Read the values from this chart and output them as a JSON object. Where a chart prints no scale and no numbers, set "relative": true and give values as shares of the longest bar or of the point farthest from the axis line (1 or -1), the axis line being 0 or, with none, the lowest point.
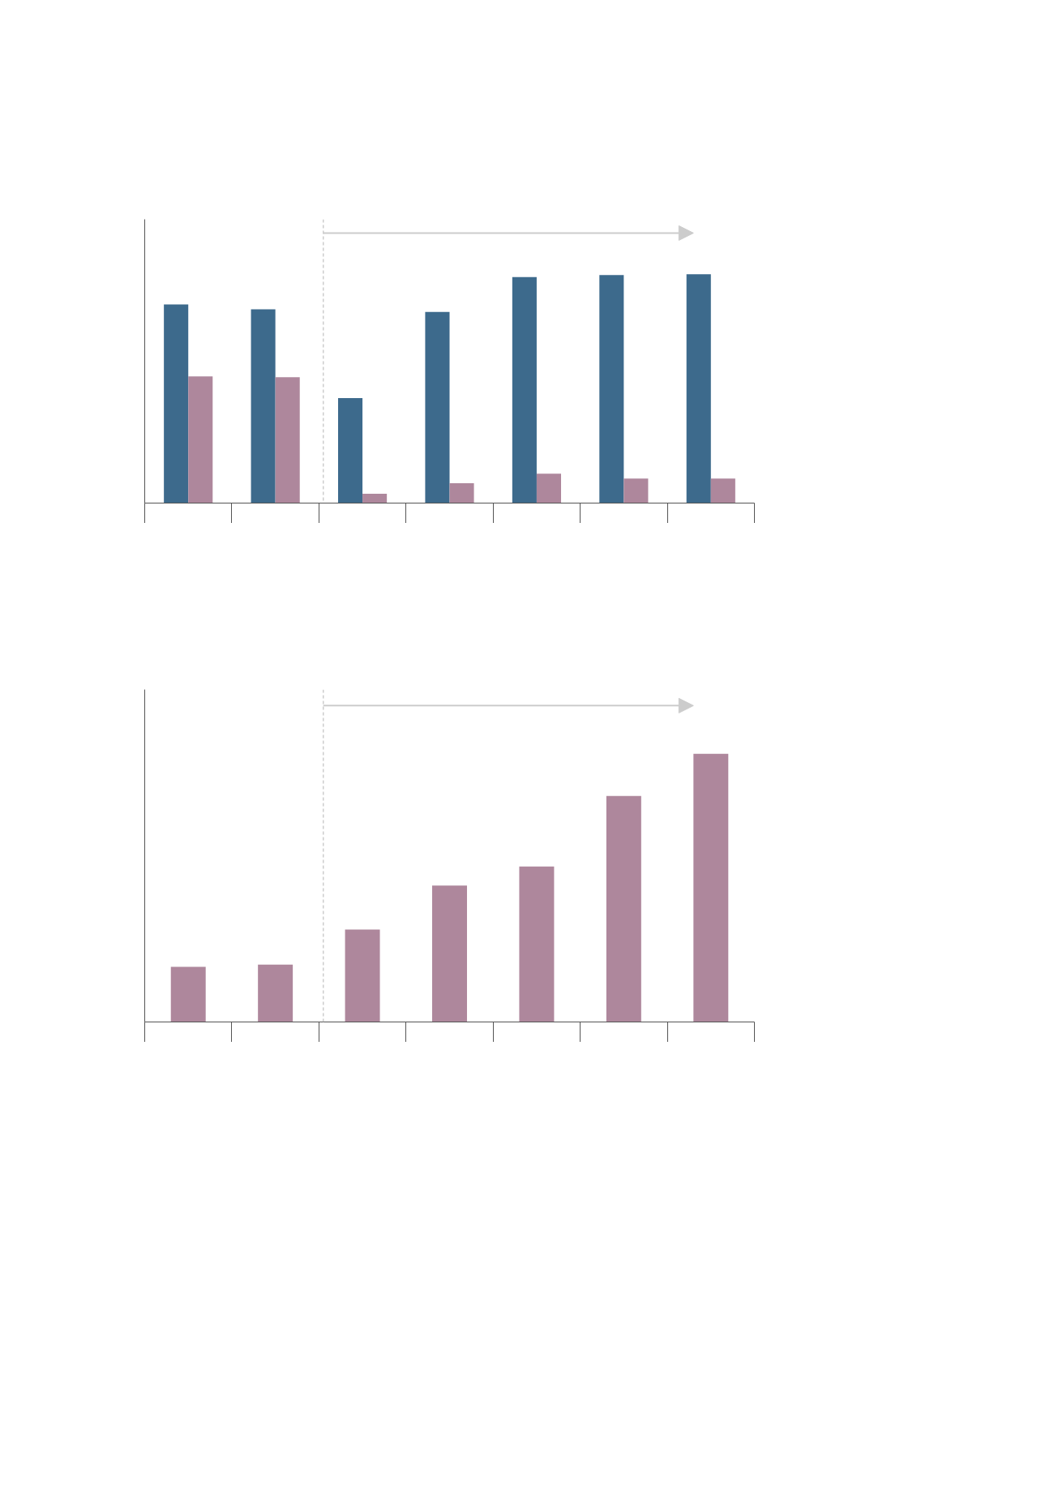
{
  "chart_data": [
    {
      "type": "bar",
      "relative": true,
      "categories": [
        null,
        null,
        null,
        null,
        null,
        null,
        null
      ],
      "series": [
        {
          "color": "#3d6a8c",
          "values": [
            0.868,
            0.847,
            0.459,
            0.835,
            0.988,
            0.996,
            1
          ]
        },
        {
          "color": "#ae879c",
          "values": [
            0.554,
            0.55,
            0.041,
            0.087,
            0.128,
            0.107,
            0.107
          ]
        }
      ]
    },
    {
      "type": "bar",
      "relative": true,
      "categories": [
        null,
        null,
        null,
        null,
        null,
        null,
        null
      ],
      "series": [
        {
          "color": "#ae879c",
          "values": [
            0.206,
            0.214,
            0.345,
            0.509,
            0.58,
            0.843,
            1
          ]
        }
      ]
    }
  ]
}
